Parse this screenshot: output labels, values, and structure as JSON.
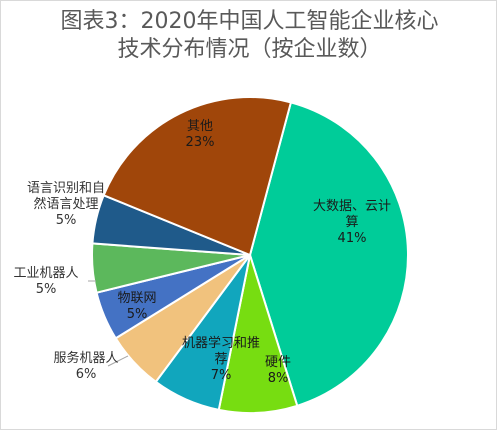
{
  "title_line1": "图表3：2020年中国人工智能企业核心",
  "title_line2": "技术分布情况（按企业数）",
  "chart_data": {
    "type": "pie",
    "title": "图表3：2020年中国人工智能企业核心技术分布情况（按企业数）",
    "slices": [
      {
        "label_lines": [
          "大数据、云计",
          "算"
        ],
        "value": 41,
        "value_text": "41%",
        "color": "#00cc99",
        "label_color": "#1a1a1a",
        "label_position": "inside"
      },
      {
        "label_lines": [
          "硬件"
        ],
        "value": 8,
        "value_text": "8%",
        "color": "#77dd11",
        "label_color": "#1a1a1a",
        "label_position": "inside"
      },
      {
        "label_lines": [
          "机器学习和推",
          "荐"
        ],
        "value": 7,
        "value_text": "7%",
        "color": "#11a6bd",
        "label_color": "#1a1a1a",
        "label_position": "inside"
      },
      {
        "label_lines": [
          "服务机器人"
        ],
        "value": 6,
        "value_text": "6%",
        "color": "#f1c27d",
        "label_color": "#333333",
        "label_position": "outside-left"
      },
      {
        "label_lines": [
          "物联网"
        ],
        "value": 5,
        "value_text": "5%",
        "color": "#4472c4",
        "label_color": "#1a1a1a",
        "label_position": "inside"
      },
      {
        "label_lines": [
          "工业机器人"
        ],
        "value": 5,
        "value_text": "5%",
        "color": "#5cb85c",
        "label_color": "#333333",
        "label_position": "outside-left"
      },
      {
        "label_lines": [
          "语言识别和自",
          "然语言处理"
        ],
        "value": 5,
        "value_text": "5%",
        "color": "#1f5a8a",
        "label_color": "#333333",
        "label_position": "outside-left"
      },
      {
        "label_lines": [
          "其他"
        ],
        "value": 23,
        "value_text": "23%",
        "color": "#a0460a",
        "label_color": "#1a1a1a",
        "label_position": "inside"
      }
    ]
  }
}
